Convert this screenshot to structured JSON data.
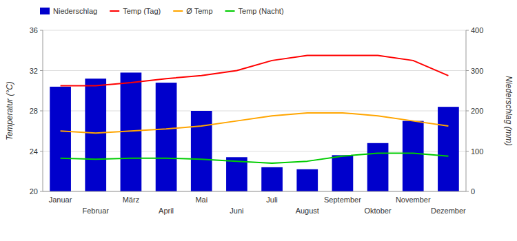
{
  "chart_data": {
    "type": "bar",
    "categories": [
      "Januar",
      "Februar",
      "März",
      "April",
      "Mai",
      "Juni",
      "Juli",
      "August",
      "September",
      "Oktober",
      "November",
      "Dezember"
    ],
    "series": [
      {
        "name": "Niederschlag",
        "type": "bar",
        "axis": "y2",
        "color": "#0000cc",
        "values": [
          260,
          280,
          295,
          270,
          200,
          85,
          60,
          55,
          90,
          120,
          175,
          210
        ]
      },
      {
        "name": "Temp (Tag)",
        "type": "line",
        "color": "#ff0000",
        "values": [
          30.5,
          30.5,
          30.8,
          31.2,
          31.5,
          32.0,
          33.0,
          33.5,
          33.5,
          33.5,
          33.0,
          31.5
        ]
      },
      {
        "name": "Ø Temp",
        "type": "line",
        "color": "#ffa500",
        "values": [
          26.0,
          25.8,
          26.0,
          26.2,
          26.5,
          27.0,
          27.5,
          27.8,
          27.8,
          27.5,
          27.0,
          26.5
        ]
      },
      {
        "name": "Temp (Nacht)",
        "type": "line",
        "color": "#00cc00",
        "values": [
          23.3,
          23.2,
          23.3,
          23.3,
          23.2,
          23.0,
          22.8,
          23.0,
          23.5,
          23.8,
          23.8,
          23.5
        ]
      }
    ],
    "ylabel": "Temperatur (°C)",
    "y2label": "Niederschlag (mm)",
    "ylim": [
      20,
      36
    ],
    "yticks": [
      20,
      24,
      28,
      32,
      36
    ],
    "y2lim": [
      0,
      400
    ],
    "y2ticks": [
      0,
      100,
      200,
      300,
      400
    ],
    "grid": true,
    "legend": "top"
  }
}
